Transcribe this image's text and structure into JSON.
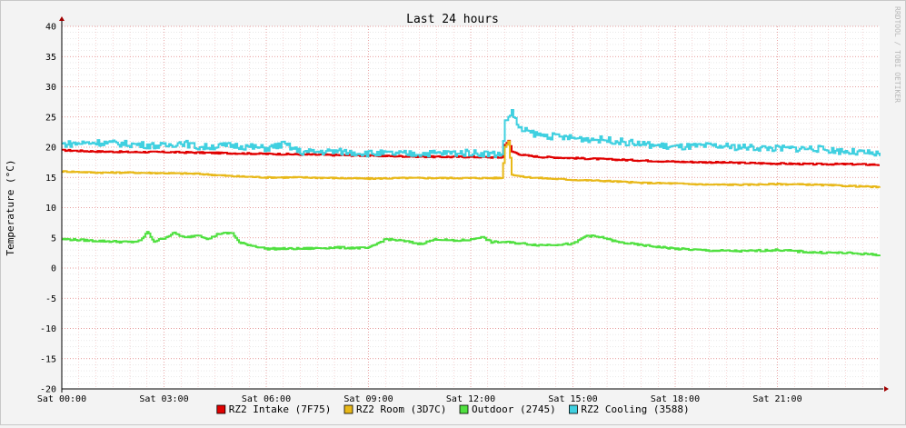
{
  "chart_data": {
    "type": "line",
    "title": "Last 24 hours",
    "ylabel": "Temperature (°C)",
    "watermark": "RRDTOOL / TOBI OETIKER",
    "ylim": [
      -20,
      40
    ],
    "y_ticks": [
      40,
      35,
      30,
      25,
      20,
      15,
      10,
      5,
      0,
      -5,
      -10,
      -15,
      -20
    ],
    "x_range_hours": [
      0,
      24
    ],
    "x_ticks": [
      {
        "label": "Sat 00:00",
        "hour": 0
      },
      {
        "label": "Sat 03:00",
        "hour": 3
      },
      {
        "label": "Sat 06:00",
        "hour": 6
      },
      {
        "label": "Sat 09:00",
        "hour": 9
      },
      {
        "label": "Sat 12:00",
        "hour": 12
      },
      {
        "label": "Sat 15:00",
        "hour": 15
      },
      {
        "label": "Sat 18:00",
        "hour": 18
      },
      {
        "label": "Sat 21:00",
        "hour": 21
      }
    ],
    "grid": true,
    "legend_position": "bottom",
    "series": [
      {
        "name": "RZ2 Intake (7F75)",
        "color": "#e00000",
        "points": [
          [
            0,
            19.5
          ],
          [
            1,
            19.3
          ],
          [
            2,
            19.2
          ],
          [
            3,
            19.2
          ],
          [
            4,
            19.1
          ],
          [
            5,
            19.0
          ],
          [
            6,
            18.9
          ],
          [
            7,
            18.8
          ],
          [
            8,
            18.7
          ],
          [
            9,
            18.6
          ],
          [
            10,
            18.5
          ],
          [
            11,
            18.4
          ],
          [
            12,
            18.4
          ],
          [
            12.9,
            18.3
          ],
          [
            13,
            20.5
          ],
          [
            13.1,
            21.0
          ],
          [
            13.2,
            19.3
          ],
          [
            13.5,
            18.7
          ],
          [
            14,
            18.4
          ],
          [
            15,
            18.2
          ],
          [
            16,
            18.0
          ],
          [
            17,
            17.8
          ],
          [
            18,
            17.6
          ],
          [
            19,
            17.5
          ],
          [
            20,
            17.4
          ],
          [
            21,
            17.3
          ],
          [
            22,
            17.2
          ],
          [
            23,
            17.2
          ],
          [
            24,
            17.1
          ]
        ]
      },
      {
        "name": "RZ2 Room (3D7C)",
        "color": "#e8b818",
        "points": [
          [
            0,
            16.0
          ],
          [
            1,
            15.8
          ],
          [
            2,
            15.8
          ],
          [
            3,
            15.7
          ],
          [
            4,
            15.6
          ],
          [
            5,
            15.2
          ],
          [
            6,
            15.0
          ],
          [
            7,
            15.0
          ],
          [
            8,
            14.9
          ],
          [
            9,
            14.8
          ],
          [
            10,
            14.9
          ],
          [
            11,
            14.9
          ],
          [
            12,
            14.9
          ],
          [
            12.9,
            14.9
          ],
          [
            13,
            20.0
          ],
          [
            13.1,
            21.0
          ],
          [
            13.2,
            15.5
          ],
          [
            13.5,
            15.1
          ],
          [
            14,
            14.9
          ],
          [
            15,
            14.6
          ],
          [
            16,
            14.4
          ],
          [
            17,
            14.1
          ],
          [
            18,
            14.0
          ],
          [
            19,
            13.8
          ],
          [
            20,
            13.8
          ],
          [
            21,
            13.9
          ],
          [
            22,
            13.8
          ],
          [
            23,
            13.6
          ],
          [
            24,
            13.4
          ]
        ]
      },
      {
        "name": "Outdoor (2745)",
        "color": "#50e040",
        "points": [
          [
            0,
            4.8
          ],
          [
            1,
            4.5
          ],
          [
            2,
            4.3
          ],
          [
            2.3,
            4.5
          ],
          [
            2.5,
            6.0
          ],
          [
            2.7,
            4.4
          ],
          [
            3,
            5.0
          ],
          [
            3.3,
            5.8
          ],
          [
            3.6,
            5.0
          ],
          [
            4,
            5.5
          ],
          [
            4.3,
            4.8
          ],
          [
            4.6,
            5.7
          ],
          [
            5,
            5.8
          ],
          [
            5.2,
            4.2
          ],
          [
            6,
            3.2
          ],
          [
            7,
            3.2
          ],
          [
            8,
            3.4
          ],
          [
            9,
            3.3
          ],
          [
            9.5,
            4.8
          ],
          [
            10,
            4.5
          ],
          [
            10.5,
            4.0
          ],
          [
            11,
            4.8
          ],
          [
            11.5,
            4.5
          ],
          [
            12,
            4.7
          ],
          [
            12.3,
            5.2
          ],
          [
            12.6,
            4.3
          ],
          [
            13,
            4.3
          ],
          [
            14,
            3.8
          ],
          [
            15,
            4.0
          ],
          [
            15.4,
            5.4
          ],
          [
            15.9,
            5.0
          ],
          [
            16.3,
            4.3
          ],
          [
            17,
            3.8
          ],
          [
            18,
            3.2
          ],
          [
            19,
            2.9
          ],
          [
            20,
            2.8
          ],
          [
            21,
            3.0
          ],
          [
            22,
            2.6
          ],
          [
            23,
            2.5
          ],
          [
            24,
            2.2
          ]
        ]
      },
      {
        "name": "RZ2 Cooling (3588)",
        "color": "#40d0e0",
        "points": [
          [
            0,
            20.5
          ],
          [
            1,
            20.8
          ],
          [
            2,
            20.5
          ],
          [
            3,
            20.2
          ],
          [
            3.5,
            20.8
          ],
          [
            4,
            20.0
          ],
          [
            5,
            20.3
          ],
          [
            6,
            19.8
          ],
          [
            6.5,
            20.5
          ],
          [
            7,
            19.2
          ],
          [
            8,
            19.3
          ],
          [
            9,
            19.0
          ],
          [
            10,
            18.9
          ],
          [
            11,
            19.0
          ],
          [
            12,
            19.1
          ],
          [
            12.9,
            18.8
          ],
          [
            13,
            24.0
          ],
          [
            13.2,
            26.0
          ],
          [
            13.4,
            23.0
          ],
          [
            14,
            22.0
          ],
          [
            15,
            21.5
          ],
          [
            16,
            21.2
          ],
          [
            17,
            20.5
          ],
          [
            18,
            20.0
          ],
          [
            19,
            20.2
          ],
          [
            20,
            20.0
          ],
          [
            21,
            19.8
          ],
          [
            22,
            19.8
          ],
          [
            23,
            19.3
          ],
          [
            24,
            18.8
          ]
        ]
      }
    ]
  }
}
